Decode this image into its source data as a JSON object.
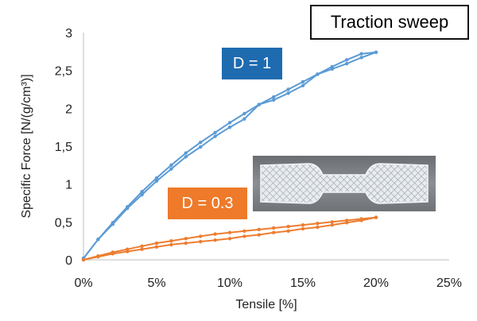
{
  "chart_data": {
    "type": "line",
    "title": "Traction sweep",
    "xlabel": "Tensile [%]",
    "ylabel": "Specific Force [N/(g/cm³)]",
    "xlim": [
      0,
      25
    ],
    "ylim": [
      0,
      3
    ],
    "x_ticks": [
      "0%",
      "5%",
      "10%",
      "15%",
      "20%",
      "25%"
    ],
    "y_ticks": [
      "0",
      "0,5",
      "1",
      "1,5",
      "2",
      "2,5",
      "3"
    ],
    "series": [
      {
        "name": "D = 1",
        "color": "#5b9bd5",
        "loading_x": [
          0,
          1,
          2,
          3,
          4,
          5,
          6,
          7,
          8,
          9,
          10,
          11,
          12,
          13,
          14,
          15,
          16,
          17,
          18,
          19,
          20
        ],
        "loading_y": [
          0.02,
          0.27,
          0.49,
          0.7,
          0.9,
          1.08,
          1.25,
          1.41,
          1.55,
          1.68,
          1.81,
          1.93,
          2.05,
          2.15,
          2.25,
          2.35,
          2.45,
          2.55,
          2.64,
          2.72,
          2.74
        ],
        "unloading_x": [
          20,
          19,
          18,
          17,
          16,
          15,
          14,
          13,
          12,
          11,
          10,
          9,
          8,
          7,
          6,
          5,
          4,
          3,
          2,
          1,
          0
        ],
        "unloading_y": [
          2.74,
          2.67,
          2.59,
          2.52,
          2.45,
          2.3,
          2.2,
          2.11,
          2.05,
          1.86,
          1.75,
          1.63,
          1.49,
          1.36,
          1.2,
          1.04,
          0.86,
          0.68,
          0.47,
          0.27,
          0.02
        ]
      },
      {
        "name": "D = 0.3",
        "color": "#ed7d31",
        "loading_x": [
          0,
          1,
          2,
          3,
          4,
          5,
          6,
          7,
          8,
          9,
          10,
          11,
          12,
          13,
          14,
          15,
          16,
          17,
          18,
          19,
          20
        ],
        "loading_y": [
          0.0,
          0.05,
          0.1,
          0.14,
          0.18,
          0.22,
          0.25,
          0.28,
          0.31,
          0.34,
          0.36,
          0.38,
          0.4,
          0.42,
          0.44,
          0.46,
          0.48,
          0.5,
          0.52,
          0.54,
          0.56
        ],
        "unloading_x": [
          20,
          19,
          18,
          17,
          16,
          15,
          14,
          13,
          12,
          11,
          10,
          9,
          8,
          7,
          6,
          5,
          4,
          3,
          2,
          1,
          0
        ],
        "unloading_y": [
          0.56,
          0.52,
          0.49,
          0.46,
          0.43,
          0.41,
          0.38,
          0.36,
          0.33,
          0.31,
          0.28,
          0.26,
          0.24,
          0.22,
          0.2,
          0.17,
          0.14,
          0.11,
          0.08,
          0.04,
          0.0
        ]
      }
    ],
    "annotations": [
      "D = 1",
      "D = 0.3"
    ],
    "inset_image": "photo-of-lattice-dogbone-specimen"
  }
}
